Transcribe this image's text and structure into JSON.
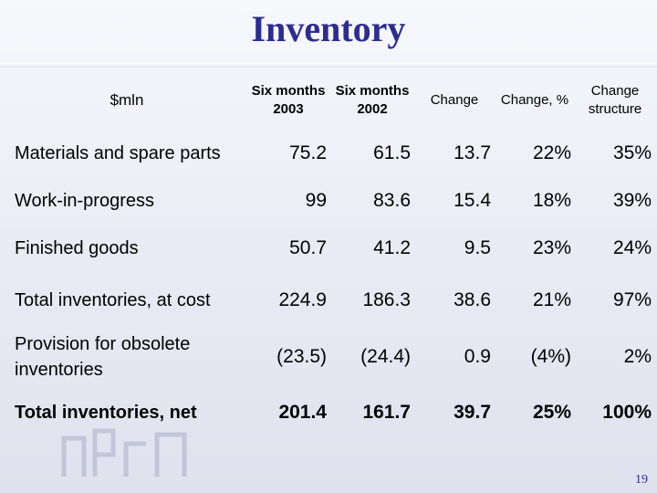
{
  "title": "Inventory",
  "units_label": "$mln",
  "columns": [
    "Six months 2003",
    "Six months 2002",
    "Change",
    "Change, %",
    "Change structure"
  ],
  "rows": [
    {
      "label": "Materials and spare parts",
      "values": [
        "75.2",
        "61.5",
        "13.7",
        "22%",
        "35%"
      ]
    },
    {
      "label": "Work-in-progress",
      "values": [
        "99",
        "83.6",
        "15.4",
        "18%",
        "39%"
      ]
    },
    {
      "label": "Finished goods",
      "values": [
        "50.7",
        "41.2",
        "9.5",
        "23%",
        "24%"
      ]
    },
    {
      "label": "Total inventories, at cost",
      "values": [
        "224.9",
        "186.3",
        "38.6",
        "21%",
        "97%"
      ]
    },
    {
      "label": "Provision for obsolete inventories",
      "values": [
        "(23.5)",
        "(24.4)",
        "0.9",
        "(4%)",
        "2%"
      ]
    },
    {
      "label": "Total inventories, net",
      "values": [
        "201.4",
        "161.7",
        "39.7",
        "25%",
        "100%"
      ]
    }
  ],
  "page_number": "19",
  "colors": {
    "title": "#2d2d8f",
    "text": "#000000",
    "background": "#eceef6"
  }
}
